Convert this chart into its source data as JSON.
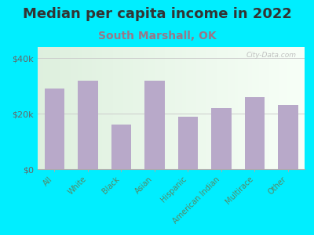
{
  "title": "Median per capita income in 2022",
  "subtitle": "South Marshall, OK",
  "categories": [
    "All",
    "White",
    "Black",
    "Asian",
    "Hispanic",
    "American Indian",
    "Multirace",
    "Other"
  ],
  "values": [
    29000,
    32000,
    16000,
    32000,
    19000,
    22000,
    26000,
    23000
  ],
  "bar_color": "#b8a9c9",
  "background_outer": "#00eeff",
  "background_inner_left": "#ddeedd",
  "background_inner_right": "#f8fff8",
  "title_color": "#333333",
  "subtitle_color": "#997788",
  "xtick_label_color": "#558866",
  "ytick_label_color": "#666666",
  "ytick_labels": [
    "$0",
    "$20k",
    "$40k"
  ],
  "ytick_values": [
    0,
    20000,
    40000
  ],
  "ylim": [
    0,
    44000
  ],
  "watermark": "City-Data.com",
  "title_fontsize": 13,
  "subtitle_fontsize": 10,
  "spine_color": "#aaaaaa",
  "grid_color": "#cccccc"
}
